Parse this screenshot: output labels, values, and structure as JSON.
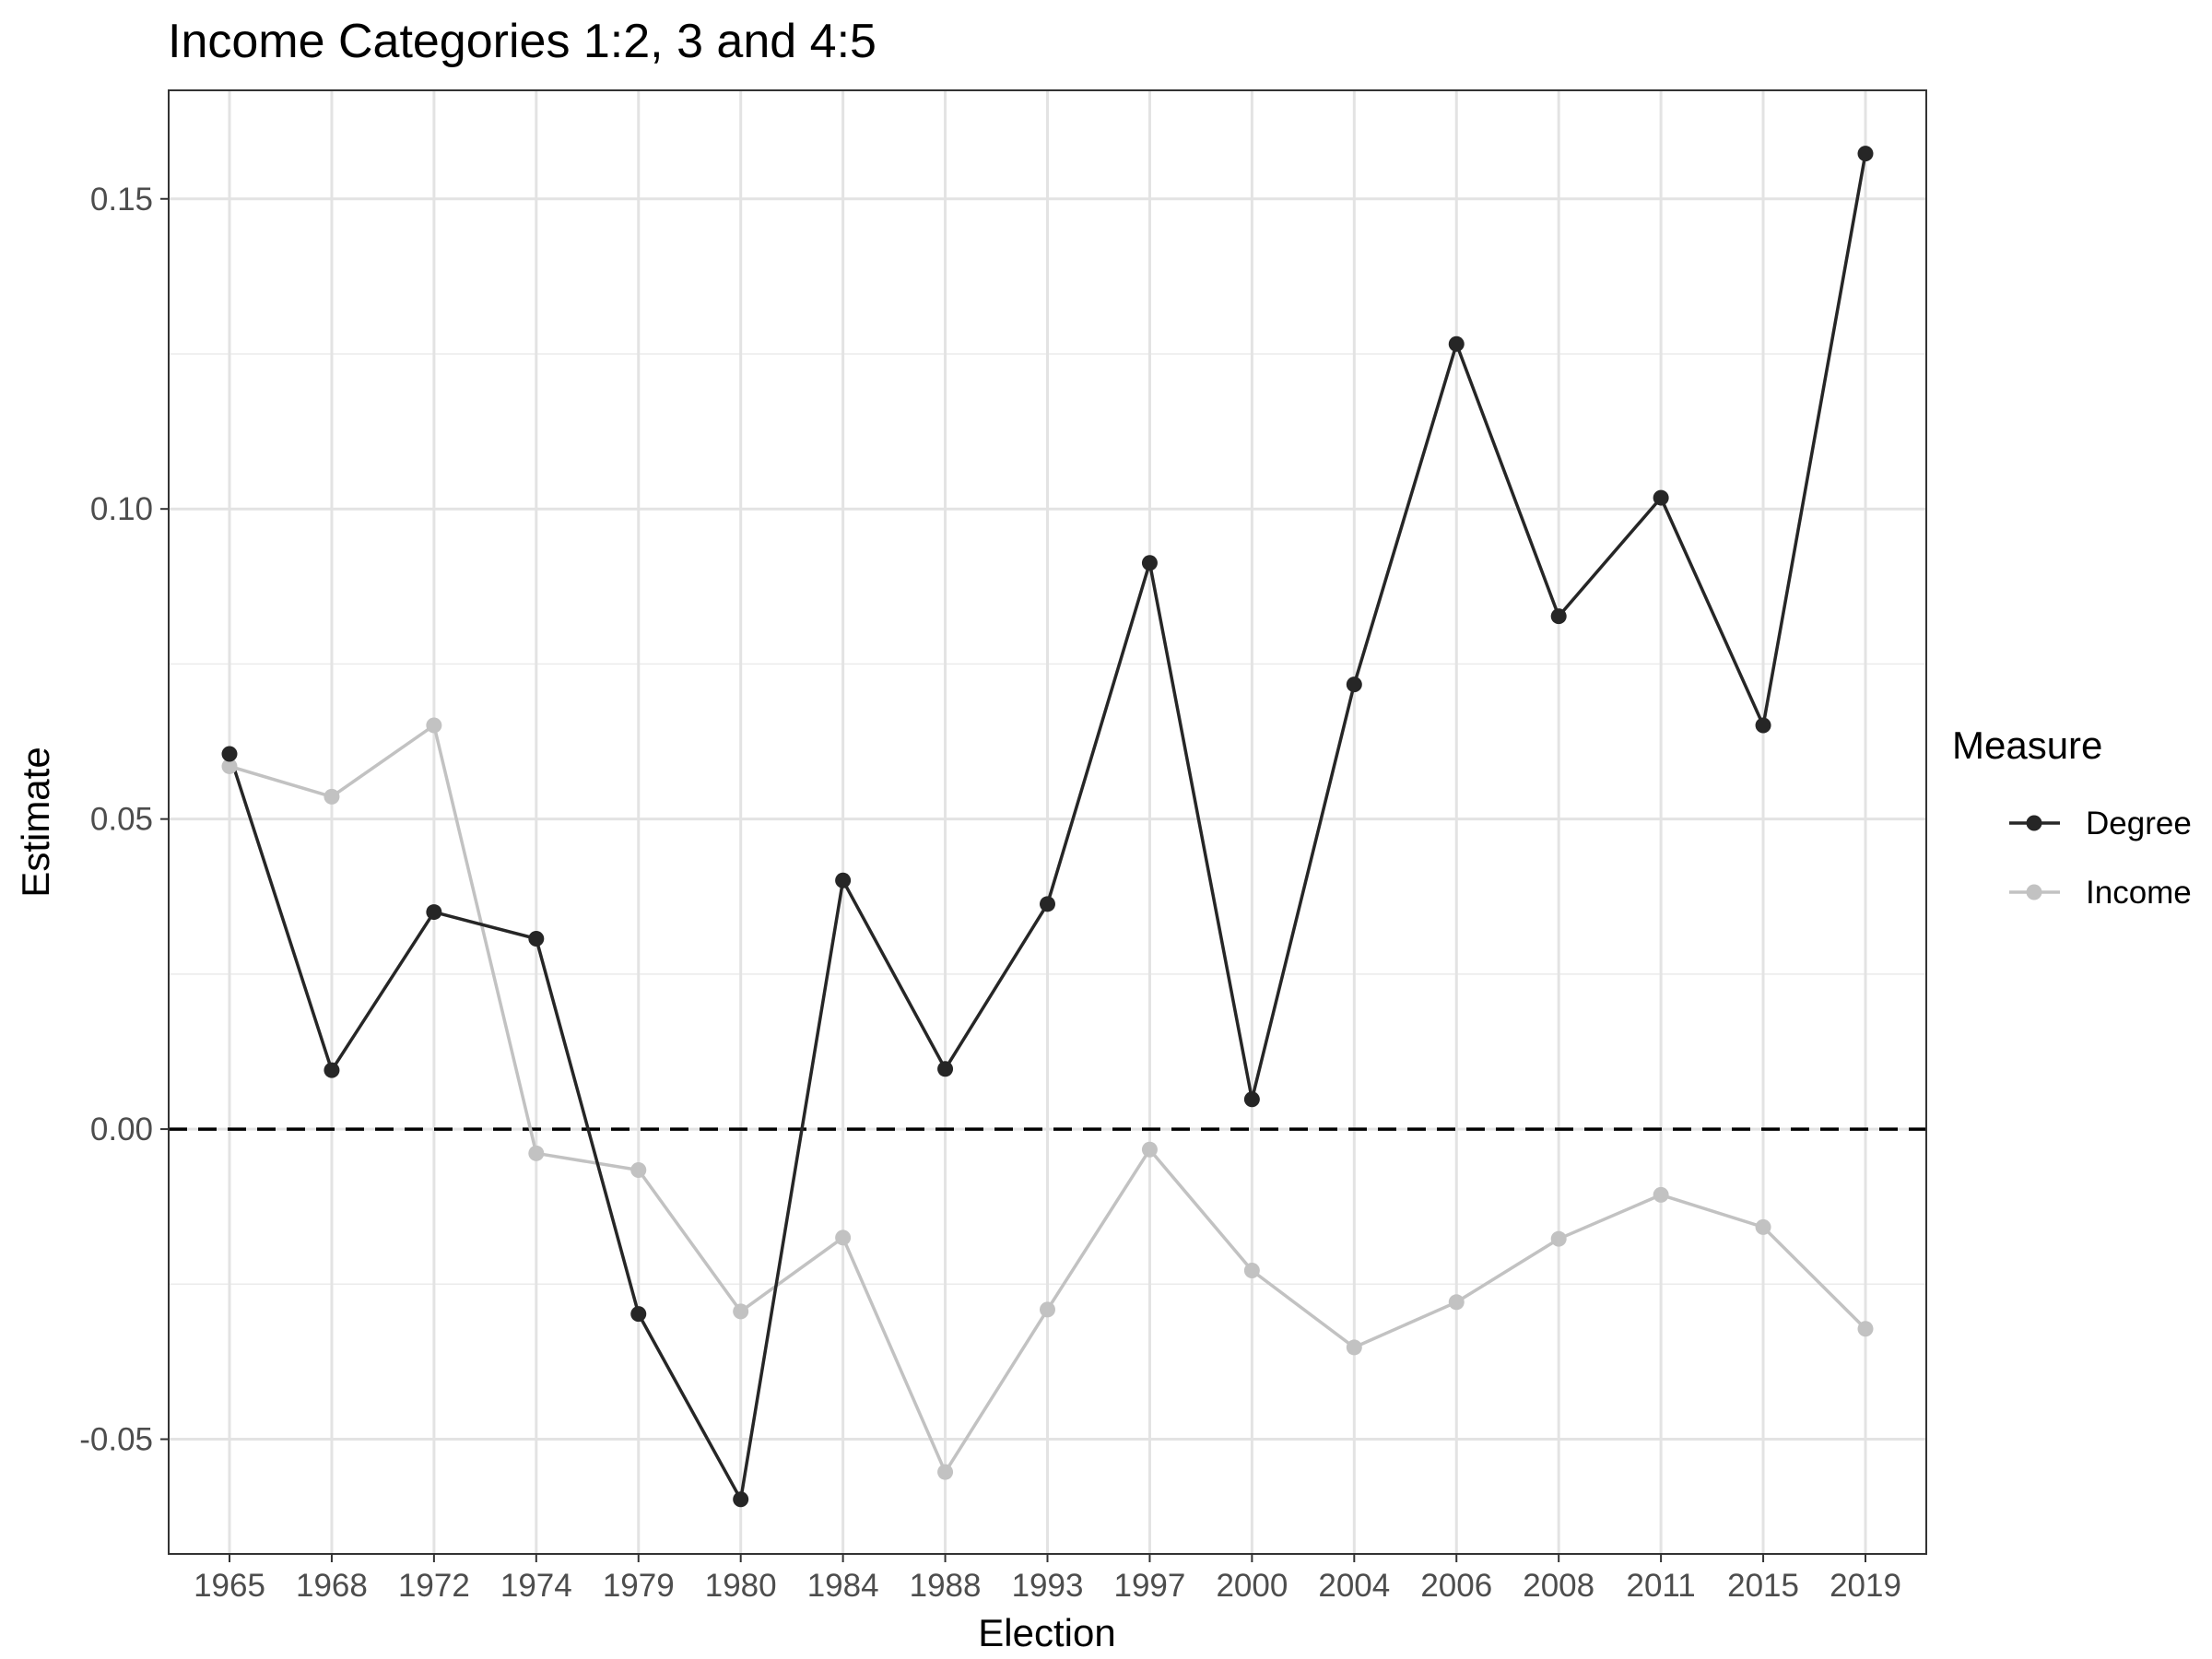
{
  "chart_data": {
    "type": "line",
    "title": "Income Categories 1:2, 3 and 4:5",
    "xlabel": "Election",
    "ylabel": "Estimate",
    "categories": [
      "1965",
      "1968",
      "1972",
      "1974",
      "1979",
      "1980",
      "1984",
      "1988",
      "1993",
      "1997",
      "2000",
      "2004",
      "2006",
      "2008",
      "2011",
      "2015",
      "2019"
    ],
    "ylim": [
      -0.0685,
      0.1675
    ],
    "yticks": [
      -0.05,
      0.0,
      0.05,
      0.1,
      0.15
    ],
    "ytick_labels": [
      "-0.05",
      "0.00",
      "0.05",
      "0.10",
      "0.15"
    ],
    "grid": true,
    "reference_line": {
      "y": 0.0,
      "style": "dashed"
    },
    "legend": {
      "title": "Measure",
      "position": "right"
    },
    "series": [
      {
        "name": "Degree",
        "color": "#262626",
        "values": [
          0.0605,
          0.0095,
          0.035,
          0.0307,
          -0.0298,
          -0.0597,
          0.0401,
          0.0097,
          0.0363,
          0.0913,
          0.0048,
          0.0717,
          0.1266,
          0.0827,
          0.1018,
          0.0651,
          0.1573
        ]
      },
      {
        "name": "Income",
        "color": "#c2c2c2",
        "values": [
          0.0585,
          0.0536,
          0.0651,
          -0.0039,
          -0.0066,
          -0.0294,
          -0.0175,
          -0.0553,
          -0.0291,
          -0.0033,
          -0.0228,
          -0.0352,
          -0.0279,
          -0.0177,
          -0.0106,
          -0.0158,
          -0.0322
        ]
      }
    ]
  }
}
